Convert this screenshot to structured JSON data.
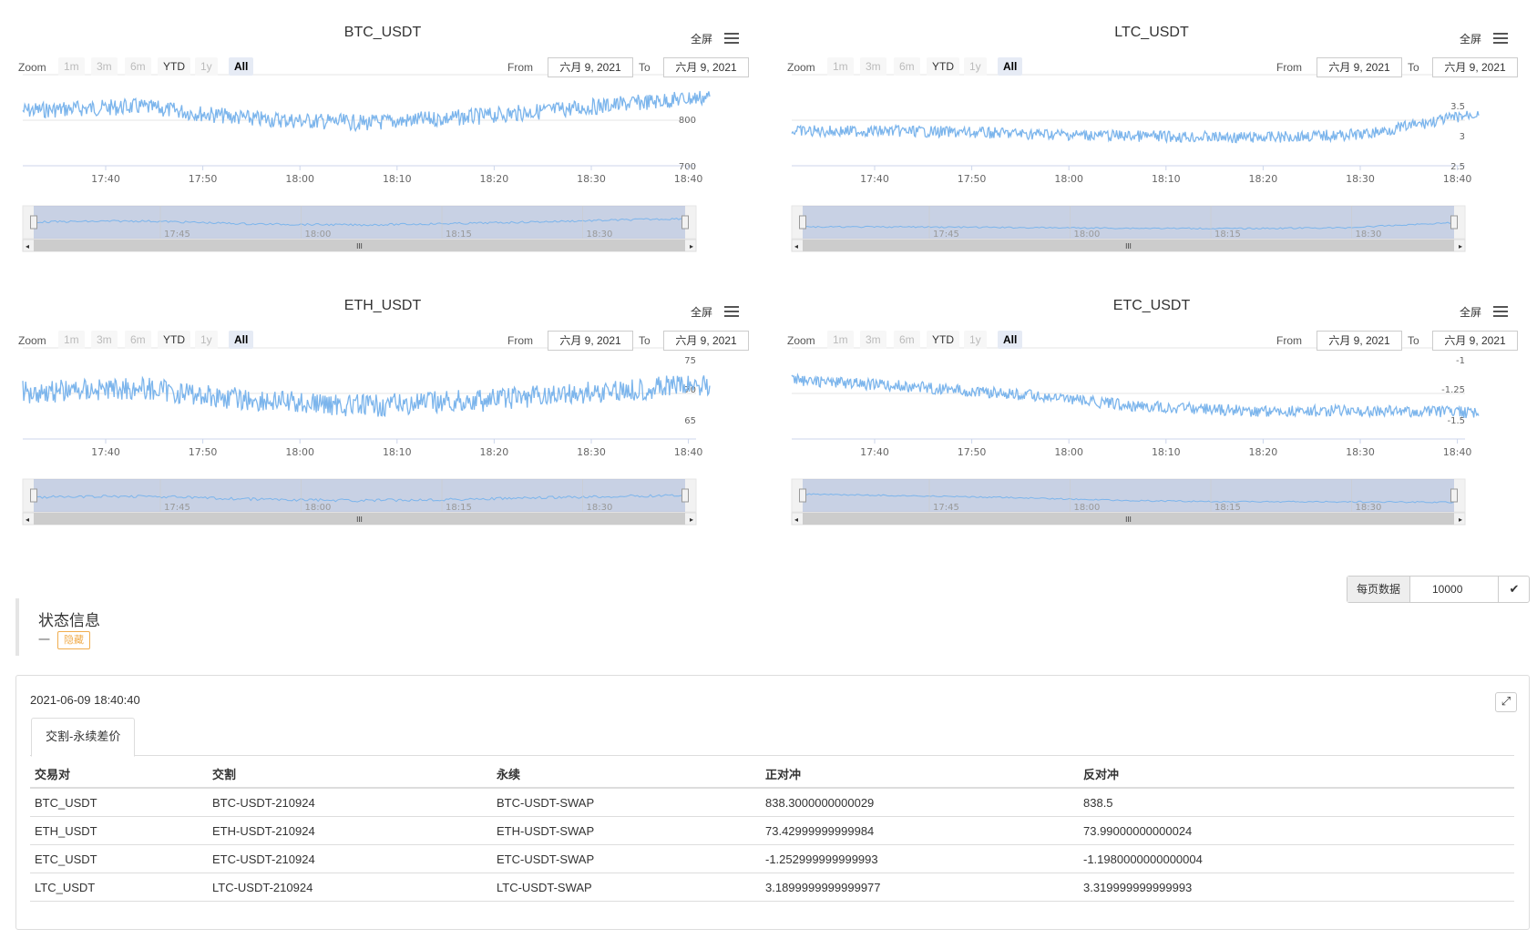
{
  "charts": [
    {
      "title": "BTC_USDT",
      "fullscreen_label": "全屏",
      "zoom_label": "Zoom",
      "zoom_buttons": [
        "1m",
        "3m",
        "6m",
        "YTD",
        "1y",
        "All"
      ],
      "from_label": "From",
      "from_date": "六月 9, 2021",
      "to_label": "To",
      "to_date": "六月 9, 2021",
      "y_ticks": [
        "800",
        "700"
      ],
      "x_ticks": [
        "17:40",
        "17:50",
        "18:00",
        "18:10",
        "18:20",
        "18:30",
        "18:40"
      ],
      "navigator_ticks": [
        "17:45",
        "18:00",
        "18:15",
        "18:30"
      ],
      "line_color": "#7cb5ec"
    },
    {
      "title": "LTC_USDT",
      "fullscreen_label": "全屏",
      "zoom_label": "Zoom",
      "zoom_buttons": [
        "1m",
        "3m",
        "6m",
        "YTD",
        "1y",
        "All"
      ],
      "from_label": "From",
      "from_date": "六月 9, 2021",
      "to_label": "To",
      "to_date": "六月 9, 2021",
      "y_ticks": [
        "3.5",
        "3",
        "2.5"
      ],
      "x_ticks": [
        "17:40",
        "17:50",
        "18:00",
        "18:10",
        "18:20",
        "18:30",
        "18:40"
      ],
      "navigator_ticks": [
        "17:45",
        "18:00",
        "18:15",
        "18:30"
      ],
      "line_color": "#7cb5ec"
    },
    {
      "title": "ETH_USDT",
      "fullscreen_label": "全屏",
      "zoom_label": "Zoom",
      "zoom_buttons": [
        "1m",
        "3m",
        "6m",
        "YTD",
        "1y",
        "All"
      ],
      "from_label": "From",
      "from_date": "六月 9, 2021",
      "to_label": "To",
      "to_date": "六月 9, 2021",
      "y_ticks": [
        "75",
        "70",
        "65"
      ],
      "x_ticks": [
        "17:40",
        "17:50",
        "18:00",
        "18:10",
        "18:20",
        "18:30",
        "18:40"
      ],
      "navigator_ticks": [
        "17:45",
        "18:00",
        "18:15",
        "18:30"
      ],
      "line_color": "#7cb5ec"
    },
    {
      "title": "ETC_USDT",
      "fullscreen_label": "全屏",
      "zoom_label": "Zoom",
      "zoom_buttons": [
        "1m",
        "3m",
        "6m",
        "YTD",
        "1y",
        "All"
      ],
      "from_label": "From",
      "from_date": "六月 9, 2021",
      "to_label": "To",
      "to_date": "六月 9, 2021",
      "y_ticks": [
        "-1",
        "-1.25",
        "-1.5"
      ],
      "x_ticks": [
        "17:40",
        "17:50",
        "18:00",
        "18:10",
        "18:20",
        "18:30",
        "18:40"
      ],
      "navigator_ticks": [
        "17:45",
        "18:00",
        "18:15",
        "18:30"
      ],
      "line_color": "#7cb5ec"
    }
  ],
  "per_page": {
    "label": "每页数据",
    "value": "10000"
  },
  "status": {
    "title": "状态信息",
    "dash": "一",
    "hide_label": "隐藏"
  },
  "panel": {
    "timestamp": "2021-06-09 18:40:40",
    "tab_label": "交割-永续差价",
    "columns": [
      "交易对",
      "交割",
      "永续",
      "正对冲",
      "反对冲"
    ],
    "rows": [
      [
        "BTC_USDT",
        "BTC-USDT-210924",
        "BTC-USDT-SWAP",
        "838.3000000000029",
        "838.5"
      ],
      [
        "ETH_USDT",
        "ETH-USDT-210924",
        "ETH-USDT-SWAP",
        "73.42999999999984",
        "73.99000000000024"
      ],
      [
        "ETC_USDT",
        "ETC-USDT-210924",
        "ETC-USDT-SWAP",
        "-1.252999999999993",
        "-1.1980000000000004"
      ],
      [
        "LTC_USDT",
        "LTC-USDT-210924",
        "LTC-USDT-SWAP",
        "3.1899999999999977",
        "3.319999999999993"
      ]
    ]
  }
}
